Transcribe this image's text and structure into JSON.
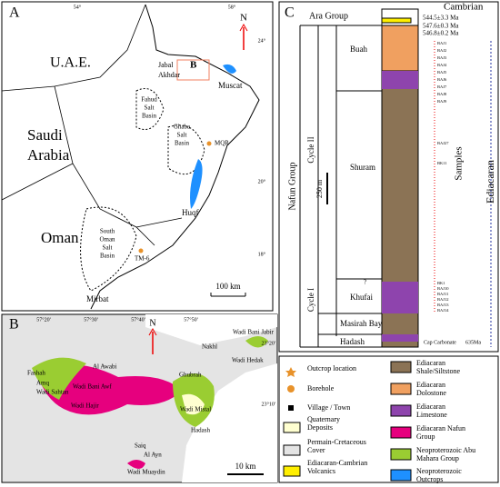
{
  "panel_a": {
    "label": "A",
    "north": "N",
    "scale_bar": "100 km",
    "coordinates": [
      "54°",
      "58°",
      "24°",
      "20°",
      "18°"
    ],
    "places": [
      "U.A.E.",
      [
        "Saudi",
        "Arabia"
      ],
      "Oman",
      [
        "Jabal",
        "Akhdar"
      ],
      "B",
      "Muscat",
      [
        "Fahud",
        "Salt",
        "Basin"
      ],
      [
        "Ghaba",
        "Salt",
        "Basin"
      ],
      "MQR",
      "Huqf",
      [
        "South",
        "Oman",
        "Salt",
        "Basin"
      ],
      "TM-6",
      "Mirbat"
    ]
  },
  "panel_b": {
    "label": "B",
    "north": "N",
    "scale_bar": "10 km",
    "coordinates": [
      "57°20'",
      "57°30'",
      "57°40'",
      "57°50'",
      "23°20'",
      "23°10'"
    ],
    "places": [
      "Wadi Bani Jabir",
      "Nakhl",
      "Wadi Hedak",
      "Fashah",
      "Amq",
      "Wadi Bani Awf",
      "Al Awabi",
      "Wadi Sahtan",
      "Wadi Hajir",
      "Ghubrah",
      "Wadi Mistal",
      "Hadash",
      "Saiq",
      "Al Ayn",
      "Wadi Muaydin"
    ]
  },
  "panel_c": {
    "label": "C",
    "period_top": "Cambrian",
    "period": "Ediacaran",
    "group_top": "Ara Group",
    "group": "Nafun Group",
    "cycles": [
      "Cycle II",
      "Cycle I"
    ],
    "formations": [
      "Buah",
      "Shuram",
      "Khufai",
      "Masirah Bay",
      "Hadash"
    ],
    "ages": [
      "544.5±3.3 Ma",
      "547.6±0.3 Ma",
      "546.8±0.2 Ma"
    ],
    "scale_bar": "250 m",
    "samples_title": "Samples",
    "cap": "Cap Carbonate",
    "base_age": "635Ma",
    "query": "?",
    "samples": [
      "BAJ1",
      "BAJ2",
      "BAJ3",
      "BAJ4",
      "BAJ5",
      "BAJ6",
      "BAJ7",
      "BAJ8",
      "BAJ9",
      "BAJ27",
      "BK11",
      "BK1",
      "BAJ10",
      "BAJ11",
      "BAJ12",
      "BAJ13",
      "BAJ14"
    ]
  },
  "legend": {
    "items": [
      "Outcrop location",
      "Borehole",
      "Village / Town",
      "Quaternary Deposits",
      "Permain-Cretaceous Cover",
      "Ediacaran-Cambrian Volcanics",
      "Ediacaran Shale/Siltstone",
      "Ediacaran Dolostone",
      "Ediacaran Limestone",
      "Ediacaran Nafun Group",
      "Neoproterozoic Abu Mahara Group",
      "Neoproterozoic Outcrops"
    ]
  }
}
